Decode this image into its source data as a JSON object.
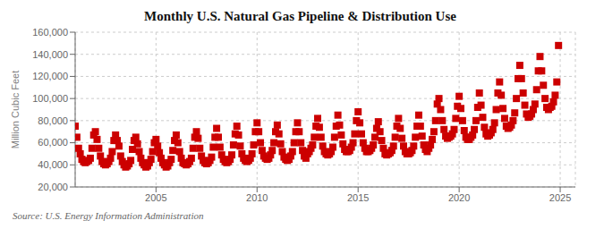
{
  "chart_data": {
    "type": "scatter",
    "title": "Monthly U.S. Natural Gas Pipeline & Distribution Use",
    "ylabel": "Million Cubic Feet",
    "annotations": [
      "Source: U.S. Energy Information Administration"
    ],
    "color": "#cc0000",
    "marker": "square",
    "grid": true,
    "xlim": [
      2001.0,
      2025.75
    ],
    "xticks": [
      2005,
      2010,
      2015,
      2020,
      2025
    ],
    "ylim": [
      20000,
      160000
    ],
    "yticks": [
      {
        "value": 20000,
        "label": "20,000"
      },
      {
        "value": 40000,
        "label": "40,000"
      },
      {
        "value": 60000,
        "label": "60,000"
      },
      {
        "value": 80000,
        "label": "80,000"
      },
      {
        "value": 100000,
        "label": "100,000"
      },
      {
        "value": 120000,
        "label": "120,000"
      },
      {
        "value": 140000,
        "label": "140,000"
      },
      {
        "value": 160000,
        "label": "160,000"
      }
    ],
    "x": [
      2001.0,
      2001.083,
      2001.167,
      2001.25,
      2001.333,
      2001.417,
      2001.5,
      2001.583,
      2001.667,
      2001.75,
      2001.833,
      2001.917,
      2002.0,
      2002.083,
      2002.167,
      2002.25,
      2002.333,
      2002.417,
      2002.5,
      2002.583,
      2002.667,
      2002.75,
      2002.833,
      2002.917,
      2003.0,
      2003.083,
      2003.167,
      2003.25,
      2003.333,
      2003.417,
      2003.5,
      2003.583,
      2003.667,
      2003.75,
      2003.833,
      2003.917,
      2004.0,
      2004.083,
      2004.167,
      2004.25,
      2004.333,
      2004.417,
      2004.5,
      2004.583,
      2004.667,
      2004.75,
      2004.833,
      2004.917,
      2005.0,
      2005.083,
      2005.167,
      2005.25,
      2005.333,
      2005.417,
      2005.5,
      2005.583,
      2005.667,
      2005.75,
      2005.833,
      2005.917,
      2006.0,
      2006.083,
      2006.167,
      2006.25,
      2006.333,
      2006.417,
      2006.5,
      2006.583,
      2006.667,
      2006.75,
      2006.833,
      2006.917,
      2007.0,
      2007.083,
      2007.167,
      2007.25,
      2007.333,
      2007.417,
      2007.5,
      2007.583,
      2007.667,
      2007.75,
      2007.833,
      2007.917,
      2008.0,
      2008.083,
      2008.167,
      2008.25,
      2008.333,
      2008.417,
      2008.5,
      2008.583,
      2008.667,
      2008.75,
      2008.833,
      2008.917,
      2009.0,
      2009.083,
      2009.167,
      2009.25,
      2009.333,
      2009.417,
      2009.5,
      2009.583,
      2009.667,
      2009.75,
      2009.833,
      2009.917,
      2010.0,
      2010.083,
      2010.167,
      2010.25,
      2010.333,
      2010.417,
      2010.5,
      2010.583,
      2010.667,
      2010.75,
      2010.833,
      2010.917,
      2011.0,
      2011.083,
      2011.167,
      2011.25,
      2011.333,
      2011.417,
      2011.5,
      2011.583,
      2011.667,
      2011.75,
      2011.833,
      2011.917,
      2012.0,
      2012.083,
      2012.167,
      2012.25,
      2012.333,
      2012.417,
      2012.5,
      2012.583,
      2012.667,
      2012.75,
      2012.833,
      2012.917,
      2013.0,
      2013.083,
      2013.167,
      2013.25,
      2013.333,
      2013.417,
      2013.5,
      2013.583,
      2013.667,
      2013.75,
      2013.833,
      2013.917,
      2014.0,
      2014.083,
      2014.167,
      2014.25,
      2014.333,
      2014.417,
      2014.5,
      2014.583,
      2014.667,
      2014.75,
      2014.833,
      2014.917,
      2015.0,
      2015.083,
      2015.167,
      2015.25,
      2015.333,
      2015.417,
      2015.5,
      2015.583,
      2015.667,
      2015.75,
      2015.833,
      2015.917,
      2016.0,
      2016.083,
      2016.167,
      2016.25,
      2016.333,
      2016.417,
      2016.5,
      2016.583,
      2016.667,
      2016.75,
      2016.833,
      2016.917,
      2017.0,
      2017.083,
      2017.167,
      2017.25,
      2017.333,
      2017.417,
      2017.5,
      2017.583,
      2017.667,
      2017.75,
      2017.833,
      2017.917,
      2018.0,
      2018.083,
      2018.167,
      2018.25,
      2018.333,
      2018.417,
      2018.5,
      2018.583,
      2018.667,
      2018.75,
      2018.833,
      2018.917,
      2019.0,
      2019.083,
      2019.167,
      2019.25,
      2019.333,
      2019.417,
      2019.5,
      2019.583,
      2019.667,
      2019.75,
      2019.833,
      2019.917,
      2020.0,
      2020.083,
      2020.167,
      2020.25,
      2020.333,
      2020.417,
      2020.5,
      2020.583,
      2020.667,
      2020.75,
      2020.833,
      2020.917,
      2021.0,
      2021.083,
      2021.167,
      2021.25,
      2021.333,
      2021.417,
      2021.5,
      2021.583,
      2021.667,
      2021.75,
      2021.833,
      2021.917,
      2022.0,
      2022.083,
      2022.167,
      2022.25,
      2022.333,
      2022.417,
      2022.5,
      2022.583,
      2022.667,
      2022.75,
      2022.833,
      2022.917,
      2023.0,
      2023.083,
      2023.167,
      2023.25,
      2023.333,
      2023.417,
      2023.5,
      2023.583,
      2023.667,
      2023.75,
      2023.833,
      2023.917,
      2024.0,
      2024.083,
      2024.167,
      2024.25,
      2024.333,
      2024.417,
      2024.5,
      2024.583,
      2024.667,
      2024.75,
      2024.833,
      2024.917
    ],
    "values": [
      75000,
      65000,
      55000,
      50000,
      45000,
      43000,
      42000,
      43000,
      44000,
      46000,
      55000,
      67000,
      70000,
      63000,
      55000,
      48000,
      43000,
      41000,
      40000,
      41000,
      43000,
      46000,
      52000,
      62000,
      67000,
      62000,
      57000,
      48000,
      43000,
      40000,
      38000,
      39000,
      41000,
      44000,
      54000,
      62000,
      65000,
      59000,
      52000,
      46000,
      42000,
      40000,
      38000,
      39000,
      42000,
      45000,
      52000,
      60000,
      63000,
      57000,
      51000,
      46000,
      42000,
      40000,
      38000,
      39000,
      42000,
      45000,
      53000,
      62000,
      67000,
      60000,
      52000,
      46000,
      42000,
      41000,
      40000,
      41000,
      43000,
      46000,
      55000,
      65000,
      70000,
      64000,
      55000,
      48000,
      44000,
      42000,
      41000,
      42000,
      44000,
      47000,
      56000,
      65000,
      73000,
      65000,
      56000,
      49000,
      45000,
      43000,
      42000,
      43000,
      45000,
      49000,
      58000,
      68000,
      75000,
      67000,
      57000,
      50000,
      46000,
      44000,
      43000,
      44000,
      46000,
      50000,
      58000,
      70000,
      78000,
      70000,
      60000,
      53000,
      48000,
      46000,
      45000,
      46000,
      49000,
      53000,
      60000,
      70000,
      76000,
      68000,
      59000,
      52000,
      47000,
      45000,
      44000,
      45000,
      48000,
      52000,
      60000,
      70000,
      78000,
      70000,
      60000,
      53000,
      48000,
      46000,
      50000,
      52000,
      55000,
      58000,
      65000,
      75000,
      82000,
      74000,
      65000,
      57000,
      52000,
      50000,
      49000,
      50000,
      52000,
      56000,
      65000,
      75000,
      85000,
      76000,
      67000,
      59000,
      54000,
      52000,
      52000,
      53000,
      56000,
      60000,
      68000,
      80000,
      88000,
      78000,
      68000,
      60000,
      55000,
      52000,
      52000,
      53000,
      55000,
      58000,
      65000,
      73000,
      79000,
      70000,
      62000,
      55000,
      50000,
      49000,
      50000,
      51000,
      53000,
      57000,
      65000,
      75000,
      82000,
      73000,
      64000,
      57000,
      52000,
      50000,
      50000,
      51000,
      53000,
      57000,
      65000,
      75000,
      85000,
      75000,
      66000,
      58000,
      54000,
      52000,
      55000,
      58000,
      63000,
      70000,
      80000,
      95000,
      100000,
      90000,
      80000,
      72000,
      66000,
      64000,
      65000,
      66000,
      68000,
      72000,
      82000,
      93000,
      102000,
      91000,
      80000,
      71000,
      65000,
      63000,
      63000,
      65000,
      67000,
      72000,
      80000,
      92000,
      105000,
      94000,
      83000,
      74000,
      68000,
      66000,
      67000,
      69000,
      72000,
      78000,
      90000,
      105000,
      115000,
      103000,
      91000,
      82000,
      75000,
      73000,
      74000,
      76000,
      80000,
      87000,
      100000,
      118000,
      130000,
      118000,
      105000,
      94000,
      86000,
      83000,
      84000,
      86000,
      90000,
      95000,
      108000,
      125000,
      138000,
      125000,
      112000,
      100000,
      92000,
      90000,
      92000,
      93000,
      97000,
      103000,
      115000,
      148000
    ]
  }
}
